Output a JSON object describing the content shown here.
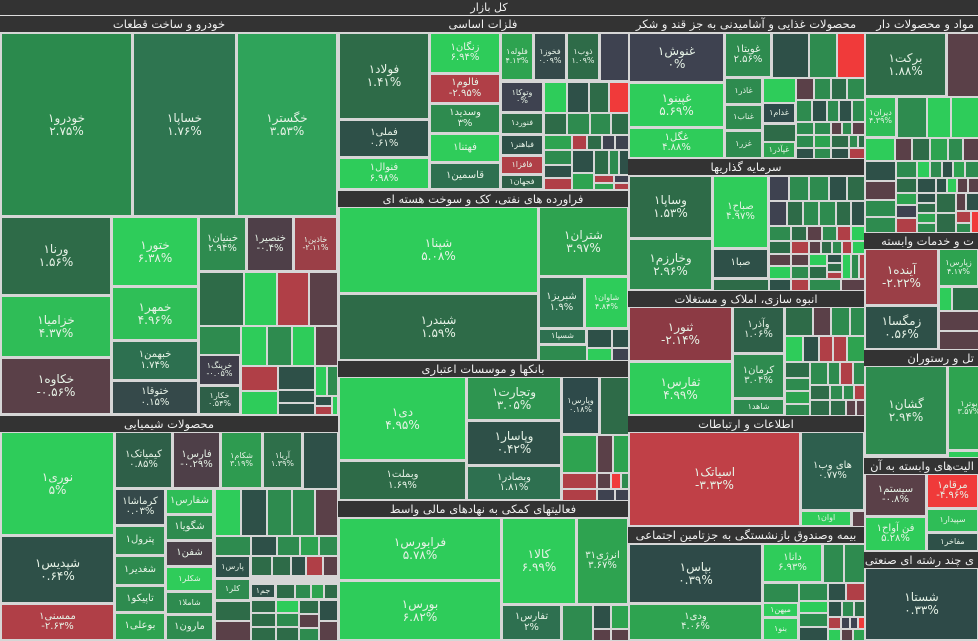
{
  "title": "کل بازار",
  "sectors": [
    {
      "title": "خودرو و ساخت قطعات",
      "tiles": [
        {
          "label": "خودرو۱",
          "change": "۲.۷۵%",
          "color": "#2b8a4d"
        },
        {
          "label": "خساپا۱",
          "change": "۱.۷۶%",
          "color": "#2e7550"
        },
        {
          "label": "خگستر۱",
          "change": "۳.۵۳%",
          "color": "#2fa35a"
        },
        {
          "label": "ورنا۱",
          "change": "۱.۵۶%",
          "color": "#2e6b48"
        },
        {
          "label": "خزامیا۱",
          "change": "۴.۳۷%",
          "color": "#2fbd57"
        },
        {
          "label": "خکاوه۱",
          "change": "-۰.۵۶%",
          "color": "#5a4048"
        },
        {
          "label": "ختور۱",
          "change": "۶.۳۸%",
          "color": "#2ecc5a"
        },
        {
          "label": "خمهر۱",
          "change": "۴.۹۶%",
          "color": "#2fbf57"
        },
        {
          "label": "خبهمن۱",
          "change": "۱.۷۴%",
          "color": "#2d7050"
        },
        {
          "label": "ختوقا۱",
          "change": "۰.۱۵%",
          "color": "#35494a"
        },
        {
          "label": "خبنیان۱",
          "change": "۲.۹۴%",
          "color": "#2e8b4f"
        },
        {
          "label": "خنصیر۱",
          "change": "-۰.۴%",
          "color": "#4e3f48"
        },
        {
          "label": "خاذین۱",
          "change": "-۲.۱۱%",
          "color": "#9b3f47"
        },
        {
          "label": "خرینگ۱",
          "change": "-۰.۰۵%",
          "color": "#3e3d4a"
        },
        {
          "label": "خکار۱",
          "change": "۰.۵۴%",
          "color": "#2e5f48"
        }
      ]
    },
    {
      "title": "محصولات شیمیایی",
      "tiles": [
        {
          "label": "نوری۱",
          "change": "۵%",
          "color": "#2ecc5a"
        },
        {
          "label": "شپدیس۱",
          "change": "۰.۶۴%",
          "color": "#2e5048"
        },
        {
          "label": "ممسنی۱",
          "change": "-۲.۶۳%",
          "color": "#b03f47"
        },
        {
          "label": "کیمیاتک۱",
          "change": "۰.۸۵%",
          "color": "#2e5f48"
        },
        {
          "label": "فارس۱",
          "change": "-۰.۲۹%",
          "color": "#4e3f48"
        },
        {
          "label": "شکام۱",
          "change": "۳.۱۹%",
          "color": "#2e9b50"
        },
        {
          "label": "آریا۱",
          "change": "۱.۳۹%",
          "color": "#2e6f4a"
        },
        {
          "label": "کرماشا۱",
          "change": "۰.۰۳%",
          "color": "#35494a"
        },
        {
          "label": "پترول۱",
          "change": "",
          "color": "#2e8b4f"
        },
        {
          "label": "شغدیر۱",
          "change": "",
          "color": "#2e8b4f"
        },
        {
          "label": "تاپیکو۱",
          "change": "",
          "color": "#2e8b4f"
        },
        {
          "label": "بوعلی۱",
          "change": "",
          "color": "#2ea350"
        },
        {
          "label": "شفارس۱",
          "change": "",
          "color": "#2fbd57"
        },
        {
          "label": "شگویا۱",
          "change": "",
          "color": "#2e8b4f"
        },
        {
          "label": "شفن۱",
          "change": "",
          "color": "#4a4048"
        },
        {
          "label": "شکلر۱",
          "change": "",
          "color": "#2fcc5a"
        },
        {
          "label": "شاملا۱",
          "change": "",
          "color": "#2e8b4f"
        },
        {
          "label": "مارون۱",
          "change": "",
          "color": "#2e8b4f"
        },
        {
          "label": "پارس۱",
          "change": "",
          "color": "#2e5048"
        },
        {
          "label": "کلر۱",
          "change": "",
          "color": "#2e8b4f"
        },
        {
          "label": "جم۱",
          "change": "",
          "color": "#2e5048"
        }
      ]
    },
    {
      "title": "فلزات اساسی",
      "tiles": [
        {
          "label": "فولاد۱",
          "change": "۱.۴۱%",
          "color": "#2e6b48"
        },
        {
          "label": "فملی۱",
          "change": "۰.۶۱%",
          "color": "#2e5048"
        },
        {
          "label": "فنوال۱",
          "change": "۶.۹۸%",
          "color": "#2ecc5a"
        },
        {
          "label": "زنگان۱",
          "change": "۶.۹۴%",
          "color": "#2ecc5a"
        },
        {
          "label": "فالوم۱",
          "change": "-۲.۹۵%",
          "color": "#b03f47"
        },
        {
          "label": "وسدید۱",
          "change": "۳%",
          "color": "#2e8b4f"
        },
        {
          "label": "فهتنا۱",
          "change": "",
          "color": "#2fcc5a"
        },
        {
          "label": "قاسمین۱",
          "change": "",
          "color": "#2e7050"
        },
        {
          "label": "فلوله۱",
          "change": "۴.۱۳%",
          "color": "#2ea350"
        },
        {
          "label": "فخوز۱",
          "change": "۰.۰۹%",
          "color": "#35494a"
        },
        {
          "label": "ذوب۱",
          "change": "۱.۰۹%",
          "color": "#2e6b48"
        },
        {
          "label": "وتوکا۱",
          "change": "۰%",
          "color": "#3e4250"
        },
        {
          "label": "فنورد۱",
          "change": "",
          "color": "#2e6b48"
        },
        {
          "label": "فباهنر۱",
          "change": "",
          "color": "#2e5048"
        },
        {
          "label": "فافزا۱",
          "change": "",
          "color": "#b03f47"
        },
        {
          "label": "فجهان۱",
          "change": "",
          "color": "#2e5f48"
        }
      ]
    },
    {
      "title": "فراورده های نفتی، کک و سوخت هسته ای",
      "tiles": [
        {
          "label": "شپنا۱",
          "change": "۵.۰۸%",
          "color": "#2ecc5a"
        },
        {
          "label": "شبندر۱",
          "change": "۱.۵۹%",
          "color": "#2e6b48"
        },
        {
          "label": "شتران۱",
          "change": "۳.۹۷%",
          "color": "#2ea350"
        },
        {
          "label": "شبریز۱",
          "change": "۱.۹%",
          "color": "#2e7050"
        },
        {
          "label": "شاوان۱",
          "change": "۴.۸۴%",
          "color": "#2ecc5a"
        },
        {
          "label": "شسپا۱",
          "change": "",
          "color": "#2e7050"
        }
      ]
    },
    {
      "title": "بانکها و موسسات اعتباری",
      "tiles": [
        {
          "label": "دی۱",
          "change": "۴.۹۵%",
          "color": "#2ecc5a"
        },
        {
          "label": "وبملت۱",
          "change": "۱.۶۹%",
          "color": "#2e6b48"
        },
        {
          "label": "وتجارت۱",
          "change": "۳.۰۵%",
          "color": "#2e9550"
        },
        {
          "label": "وپاسار۱",
          "change": "۰.۴۲%",
          "color": "#2e5048"
        },
        {
          "label": "وبصادر۱",
          "change": "۱.۸۱%",
          "color": "#2e7050"
        },
        {
          "label": "وپارس۱",
          "change": "۰.۱۸%",
          "color": "#2e4a4a"
        }
      ]
    },
    {
      "title": "فعالیتهای کمکی به نهادهای مالی واسط",
      "tiles": [
        {
          "label": "فرابورس۱",
          "change": "۵.۷۸%",
          "color": "#2ecc5a"
        },
        {
          "label": "بورس۱",
          "change": "۶.۸۲%",
          "color": "#2ecc5a"
        },
        {
          "label": "کالا۱",
          "change": "۶.۹۹%",
          "color": "#2ecc5a"
        },
        {
          "label": "انرژی۳۱",
          "change": "۳.۶۷%",
          "color": "#2ea350"
        },
        {
          "label": "تفارس۱",
          "change": "۲%",
          "color": "#2e7050"
        }
      ]
    },
    {
      "title": "محصولات غذایی و آشامیدنی به جز قند و شکر",
      "tiles": [
        {
          "label": "غنوش۱",
          "change": "۰%",
          "color": "#3e4250"
        },
        {
          "label": "غپینو۱",
          "change": "۵.۶۹%",
          "color": "#2ecc5a"
        },
        {
          "label": "غگل۱",
          "change": "۴.۸۸%",
          "color": "#2fcc5a"
        },
        {
          "label": "غویتا۱",
          "change": "۲.۵۶%",
          "color": "#2e8b4f"
        },
        {
          "label": "غاذر۱",
          "change": "",
          "color": "#2e8b4f"
        },
        {
          "label": "غناب۱",
          "change": "",
          "color": "#2e8b4f"
        },
        {
          "label": "غزر۱",
          "change": "",
          "color": "#2e8b4f"
        },
        {
          "label": "غدام۱",
          "change": "",
          "color": "#2e4a4a"
        },
        {
          "label": "غپآذر۱",
          "change": "",
          "color": "#2ea350"
        }
      ]
    },
    {
      "title": "سرمایه گذاریها",
      "tiles": [
        {
          "label": "وساپا۱",
          "change": "۱.۵۳%",
          "color": "#2e6b48"
        },
        {
          "label": "صباح۱",
          "change": "۴.۹۷%",
          "color": "#2fcc5a"
        },
        {
          "label": "وخارزم۱",
          "change": "۲.۹۶%",
          "color": "#2e8b4f"
        },
        {
          "label": "صبا۱",
          "change": "",
          "color": "#2e5048"
        }
      ]
    },
    {
      "title": "انبوه سازی، املاک و مستغلات",
      "tiles": [
        {
          "label": "ثنور۱",
          "change": "-۲.۱۴%",
          "color": "#8c3a44"
        },
        {
          "label": "ثفارس۱",
          "change": "۴.۹۹%",
          "color": "#2fcc5a"
        },
        {
          "label": "وآذر۱",
          "change": "۱.۰۶%",
          "color": "#2e5f48"
        },
        {
          "label": "کرمان۱",
          "change": "۳.۰۴%",
          "color": "#2e8b4f"
        },
        {
          "label": "شاهد۱",
          "change": "",
          "color": "#2e8b4f"
        }
      ]
    },
    {
      "title": "اطلاعات و ارتباطات",
      "tiles": [
        {
          "label": "اسیاتک۱",
          "change": "-۳.۳۲%",
          "color": "#c04047"
        },
        {
          "label": "های وب۱",
          "change": "۰.۷۷%",
          "color": "#2e5f4e"
        },
        {
          "label": "اوان۱",
          "change": "",
          "color": "#2fcc5a"
        }
      ]
    },
    {
      "title": "بیمه وصندوق بازنشستگی به جزتامین اجتماعی",
      "tiles": [
        {
          "label": "بپاس۱",
          "change": "۰.۳۹%",
          "color": "#2e4a48"
        },
        {
          "label": "ودی۱",
          "change": "۴.۰۶%",
          "color": "#2ea350"
        },
        {
          "label": "دانا۱",
          "change": "۶.۹۳%",
          "color": "#2fcc5a"
        },
        {
          "label": "میهن۱",
          "change": "",
          "color": "#2fcc5a"
        },
        {
          "label": "بنو۱",
          "change": "",
          "color": "#2fcc5a"
        }
      ]
    },
    {
      "title": "مواد و محصولات دار",
      "tiles": [
        {
          "label": "برکت۱",
          "change": "۱.۸۸%",
          "color": "#2e6b48"
        },
        {
          "label": "دیران۱",
          "change": "۴.۳۹%",
          "color": "#2fbd57"
        }
      ]
    },
    {
      "title": "ت و خدمات وابسته",
      "tiles": [
        {
          "label": "آینده۱",
          "change": "-۲.۲۲%",
          "color": "#9b3f47"
        },
        {
          "label": "زمگسا۱",
          "change": "۰.۵۶%",
          "color": "#2e5048"
        },
        {
          "label": "زپارس۱",
          "change": "۴.۱۷%",
          "color": "#2ea350"
        }
      ]
    },
    {
      "title": "تل و رستوران",
      "tiles": [
        {
          "label": "گشان۱",
          "change": "۲.۹۴%",
          "color": "#2e8b4f"
        },
        {
          "label": "بوتر۱",
          "change": "۳.۵۷%",
          "color": "#2ea350"
        }
      ]
    },
    {
      "title": "الیت‌های وابسته به آن",
      "tiles": [
        {
          "label": "سیستم۱",
          "change": "-۰.۸%",
          "color": "#5a4048"
        },
        {
          "label": "مرقام۱",
          "change": "-۴.۹۶%",
          "color": "#f03a3a"
        },
        {
          "label": "فن آواح۱",
          "change": "۵.۲۸%",
          "color": "#2fcc5a"
        },
        {
          "label": "سپیدار۱",
          "change": "",
          "color": "#2fbd57"
        },
        {
          "label": "مفاخر۱",
          "change": "",
          "color": "#2e5048"
        }
      ]
    },
    {
      "title": "ی چند رشته ای صنعتی",
      "tiles": [
        {
          "label": "شستا۱",
          "change": "۰.۳۳%",
          "color": "#2e4a48"
        }
      ]
    }
  ]
}
